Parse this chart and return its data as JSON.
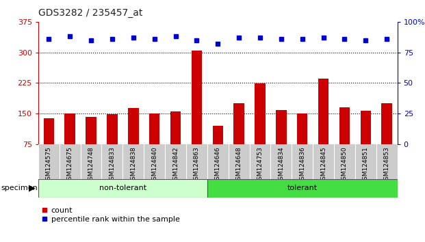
{
  "title": "GDS3282 / 235457_at",
  "categories": [
    "GSM124575",
    "GSM124675",
    "GSM124748",
    "GSM124833",
    "GSM124838",
    "GSM124840",
    "GSM124842",
    "GSM124863",
    "GSM124646",
    "GSM124648",
    "GSM124753",
    "GSM124834",
    "GSM124836",
    "GSM124845",
    "GSM124850",
    "GSM124851",
    "GSM124853"
  ],
  "count_values": [
    138,
    150,
    141,
    148,
    163,
    150,
    155,
    305,
    120,
    175,
    224,
    158,
    150,
    235,
    165,
    157,
    175
  ],
  "percentile_values": [
    86,
    88,
    85,
    86,
    87,
    86,
    88,
    85,
    82,
    87,
    87,
    86,
    86,
    87,
    86,
    85,
    86
  ],
  "non_tolerant_count": 8,
  "tolerant_count": 9,
  "ylim_left": [
    75,
    375
  ],
  "ylim_right": [
    0,
    100
  ],
  "yticks_left": [
    75,
    150,
    225,
    300,
    375
  ],
  "yticks_right": [
    0,
    25,
    50,
    75,
    100
  ],
  "bar_color": "#cc0000",
  "dot_color": "#0000cc",
  "non_tolerant_color": "#ccffcc",
  "tolerant_color": "#44dd44",
  "bg_color": "#ffffff",
  "label_bg_color": "#cccccc",
  "left_axis_color": "#cc0000",
  "right_axis_color": "#0000cc",
  "legend_count_label": "count",
  "legend_percentile_label": "percentile rank within the sample",
  "specimen_label": "specimen"
}
